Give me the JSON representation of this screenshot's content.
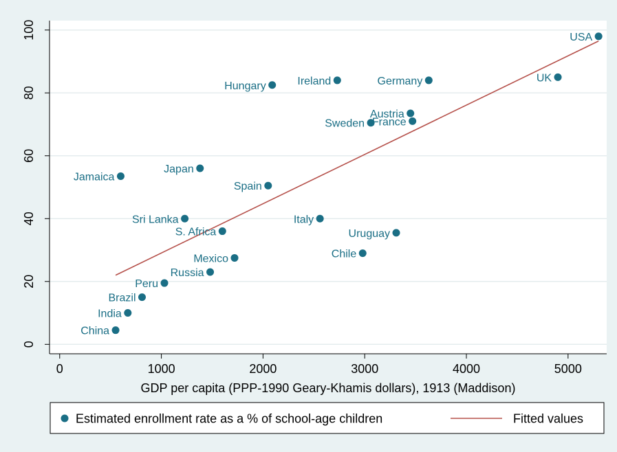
{
  "chart_data": {
    "type": "scatter",
    "title": "",
    "xlabel": "GDP per capita (PPP-1990 Geary-Khamis dollars), 1913 (Maddison)",
    "ylabel": "",
    "xlim": [
      -100,
      5380
    ],
    "ylim": [
      -3,
      103
    ],
    "xticks": [
      0,
      1000,
      2000,
      3000,
      4000,
      5000
    ],
    "yticks": [
      0,
      20,
      40,
      60,
      80,
      100
    ],
    "grid": "horizontal",
    "legend_position": "bottom",
    "colors": {
      "point": "#1a6e85",
      "fit": "#b5504a",
      "label": "#1a6e85",
      "plot_bg": "#ffffff",
      "outer_bg": "#eaf2f3",
      "grid": "#e4ecee",
      "axis": "#000000"
    },
    "series": [
      {
        "name": "Estimated enrollment rate as a % of school-age children",
        "kind": "scatter",
        "points": [
          {
            "label": "USA",
            "x": 5300,
            "y": 98,
            "pos": "left"
          },
          {
            "label": "UK",
            "x": 4900,
            "y": 85,
            "pos": "left"
          },
          {
            "label": "Germany",
            "x": 3630,
            "y": 84,
            "pos": "left"
          },
          {
            "label": "Ireland",
            "x": 2730,
            "y": 84,
            "pos": "left"
          },
          {
            "label": "Hungary",
            "x": 2090,
            "y": 82.5,
            "pos": "left"
          },
          {
            "label": "Austria",
            "x": 3450,
            "y": 73.5,
            "pos": "left"
          },
          {
            "label": "France",
            "x": 3470,
            "y": 71,
            "pos": "left"
          },
          {
            "label": "Sweden",
            "x": 3060,
            "y": 70.5,
            "pos": "left"
          },
          {
            "label": "Japan",
            "x": 1380,
            "y": 56,
            "pos": "left"
          },
          {
            "label": "Jamaica",
            "x": 600,
            "y": 53.5,
            "pos": "left"
          },
          {
            "label": "Spain",
            "x": 2050,
            "y": 50.5,
            "pos": "left"
          },
          {
            "label": "Sri Lanka",
            "x": 1230,
            "y": 40,
            "pos": "left"
          },
          {
            "label": "Italy",
            "x": 2560,
            "y": 40,
            "pos": "left"
          },
          {
            "label": "S. Africa",
            "x": 1600,
            "y": 36,
            "pos": "left"
          },
          {
            "label": "Uruguay",
            "x": 3310,
            "y": 35.5,
            "pos": "left"
          },
          {
            "label": "Chile",
            "x": 2980,
            "y": 29,
            "pos": "left"
          },
          {
            "label": "Mexico",
            "x": 1720,
            "y": 27.5,
            "pos": "left"
          },
          {
            "label": "Russia",
            "x": 1480,
            "y": 23,
            "pos": "left"
          },
          {
            "label": "Peru",
            "x": 1030,
            "y": 19.5,
            "pos": "left"
          },
          {
            "label": "Brazil",
            "x": 810,
            "y": 15,
            "pos": "left"
          },
          {
            "label": "India",
            "x": 670,
            "y": 10,
            "pos": "left"
          },
          {
            "label": "China",
            "x": 550,
            "y": 4.5,
            "pos": "left"
          }
        ]
      },
      {
        "name": "Fitted values",
        "kind": "line",
        "points": [
          {
            "x": 550,
            "y": 22
          },
          {
            "x": 5300,
            "y": 96.5
          }
        ]
      }
    ]
  }
}
